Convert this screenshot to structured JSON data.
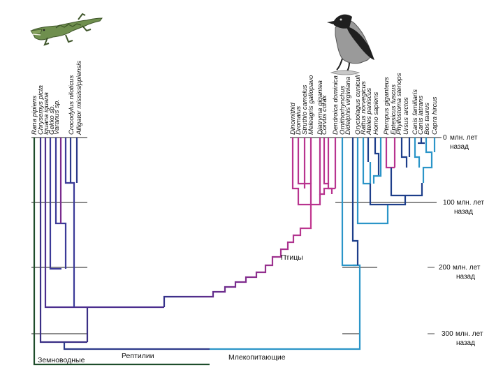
{
  "time_labels": [
    {
      "value": "0",
      "text": "млн. лет",
      "text2": "назад"
    },
    {
      "value": "",
      "text": "100 млн. лет",
      "text2": "назад"
    },
    {
      "value": "200",
      "text": "млн. лет",
      "text2": "назад"
    },
    {
      "value": "300",
      "text": "млн. лет",
      "text2": "назад"
    }
  ],
  "group_labels": {
    "amphibians": "Земноводные",
    "reptiles": "Рептилии",
    "mammals": "Млекопитающие",
    "birds": "Птицы"
  },
  "taxa_left": [
    "Rana pipiens",
    "Chrysemys picta",
    "Iguana iguana",
    "Gekko sp.",
    "Varanus sp.",
    "Crocodylus niloticus",
    "Alligator mississippiensis"
  ],
  "taxa_birds": [
    "Dinornithid",
    "Dromaius",
    "Struthio camelus",
    "Meleagris gallopavo",
    "Diatryma gigantea",
    "Corvus corax",
    "Dendroica dominica"
  ],
  "taxa_mammals": [
    "Ornithorhynchus",
    "Didelphis virginiana",
    "Oryctolagus cuniculi",
    "Rattus norvegicus",
    "Ateles paniscus",
    "Homo sapiens",
    "Pteropus giganteus",
    "Eptesicus fuscus",
    "Phyllostoma stenops",
    "Ursus arctos",
    "Canis familiaris",
    "Canis latrans",
    "Bos taurus",
    "Capra hircus"
  ],
  "colors": {
    "amphibian": "#1e4d2b",
    "reptile": "#35318a",
    "reptile_violet": "#5b2d8e",
    "bird": "#b8348f",
    "mammal": "#2b95c8",
    "mammal_dark": "#1d3e8a",
    "gridline": "#8c8c8c"
  },
  "illustrations": {
    "left": "crocodile-illustration",
    "right": "crow-illustration"
  }
}
